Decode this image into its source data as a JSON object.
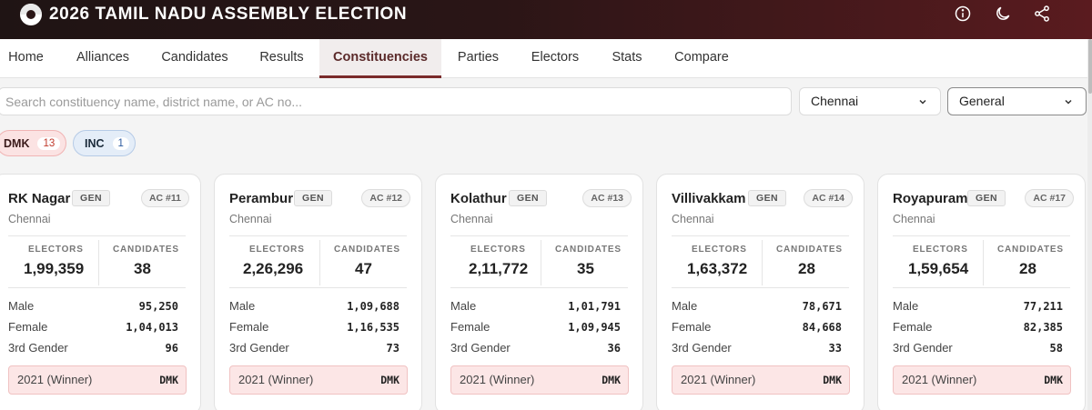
{
  "app": {
    "title": "2026 TAMIL NADU ASSEMBLY ELECTION"
  },
  "header_icons": [
    "info-icon",
    "moon-icon",
    "share-icon"
  ],
  "nav": {
    "items": [
      {
        "label": "Home"
      },
      {
        "label": "Alliances"
      },
      {
        "label": "Candidates"
      },
      {
        "label": "Results"
      },
      {
        "label": "Constituencies"
      },
      {
        "label": "Parties"
      },
      {
        "label": "Electors"
      },
      {
        "label": "Stats"
      },
      {
        "label": "Compare"
      }
    ],
    "active": "Constituencies"
  },
  "filters": {
    "search_placeholder": "Search constituency name, district name, or AC no...",
    "search_value": "",
    "district": "Chennai",
    "category": "General"
  },
  "chips": [
    {
      "party": "DMK",
      "count": "13"
    },
    {
      "party": "INC",
      "count": "1"
    }
  ],
  "labels": {
    "electors": "ELECTORS",
    "candidates": "CANDIDATES",
    "male": "Male",
    "female": "Female",
    "third_gender": "3rd Gender",
    "winner": "2021 (Winner)"
  },
  "cards": [
    {
      "name": "RK Nagar",
      "category": "GEN",
      "ac": "AC #11",
      "district": "Chennai",
      "electors": "1,99,359",
      "candidates": "38",
      "male": "95,250",
      "female": "1,04,013",
      "third_gender": "96",
      "winner_2021": "DMK"
    },
    {
      "name": "Perambur",
      "category": "GEN",
      "ac": "AC #12",
      "district": "Chennai",
      "electors": "2,26,296",
      "candidates": "47",
      "male": "1,09,688",
      "female": "1,16,535",
      "third_gender": "73",
      "winner_2021": "DMK"
    },
    {
      "name": "Kolathur",
      "category": "GEN",
      "ac": "AC #13",
      "district": "Chennai",
      "electors": "2,11,772",
      "candidates": "35",
      "male": "1,01,791",
      "female": "1,09,945",
      "third_gender": "36",
      "winner_2021": "DMK"
    },
    {
      "name": "Villivakkam",
      "category": "GEN",
      "ac": "AC #14",
      "district": "Chennai",
      "electors": "1,63,372",
      "candidates": "28",
      "male": "78,671",
      "female": "84,668",
      "third_gender": "33",
      "winner_2021": "DMK"
    },
    {
      "name": "Royapuram",
      "category": "GEN",
      "ac": "AC #17",
      "district": "Chennai",
      "electors": "1,59,654",
      "candidates": "28",
      "male": "77,211",
      "female": "82,385",
      "third_gender": "58",
      "winner_2021": "DMK"
    }
  ],
  "colors": {
    "header_dark": "#2a1516",
    "accent": "#7a2a2a",
    "dmk_bg": "#fbe3e3",
    "inc_bg": "#e4edf8"
  }
}
